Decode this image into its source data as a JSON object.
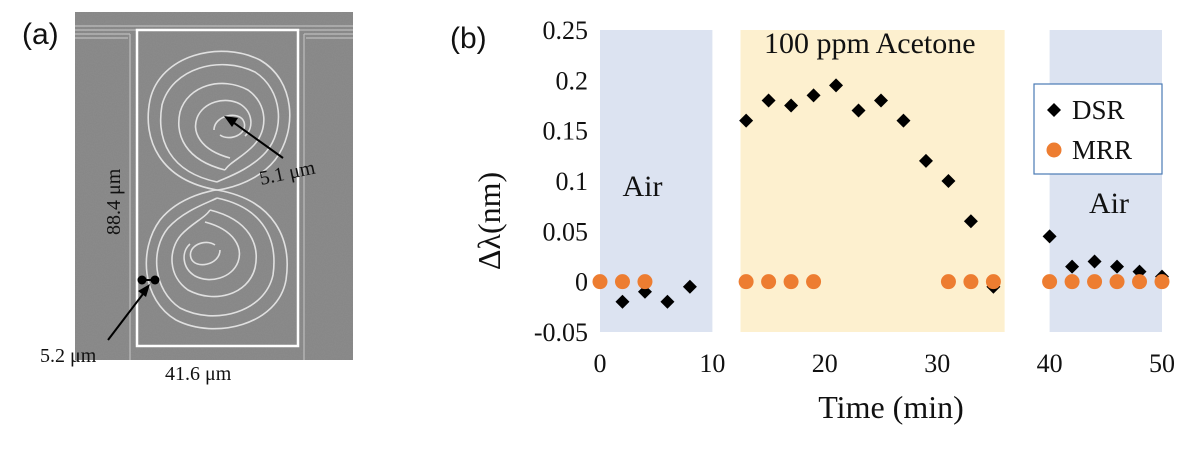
{
  "panels": {
    "a_label": "(a)",
    "b_label": "(b)"
  },
  "sem": {
    "height_label": "88.4 μm",
    "width_label": "41.6 μm",
    "inner_gap_label": "5.1 μm",
    "coupler_gap_label": "5.2 μm"
  },
  "chart_data": {
    "type": "scatter",
    "xlabel": "Time (min)",
    "ylabel": "Δλ(nm)",
    "xlim": [
      0,
      50
    ],
    "ylim": [
      -0.05,
      0.25
    ],
    "xticks": [
      0,
      10,
      20,
      30,
      40,
      50
    ],
    "yticks": [
      -0.05,
      0,
      0.05,
      0.1,
      0.15,
      0.2,
      0.25
    ],
    "ytick_labels": [
      "-0.05",
      "0",
      "0.05",
      "0.1",
      "0.15",
      "0.2",
      "0.25"
    ],
    "grid": false,
    "legend_position": "top-right",
    "regions": [
      {
        "label": "Air",
        "x": [
          0,
          10
        ],
        "color": "#dce3f1"
      },
      {
        "label": "100 ppm Acetone",
        "x": [
          12.5,
          36
        ],
        "color": "#fdf0cf"
      },
      {
        "label": "Air",
        "x": [
          40,
          50
        ],
        "color": "#dce3f1"
      }
    ],
    "series": [
      {
        "name": "DSR",
        "marker": "diamond",
        "color": "#000000",
        "x": [
          2,
          4,
          6,
          8,
          13,
          15,
          17,
          19,
          21,
          23,
          25,
          27,
          29,
          31,
          33,
          35,
          40,
          42,
          44,
          46,
          48,
          50
        ],
        "y": [
          -0.02,
          -0.01,
          -0.02,
          -0.005,
          0.16,
          0.18,
          0.175,
          0.185,
          0.195,
          0.17,
          0.18,
          0.16,
          0.12,
          0.1,
          0.06,
          -0.005,
          0.045,
          0.015,
          0.02,
          0.015,
          0.01,
          0.005
        ]
      },
      {
        "name": "MRR",
        "marker": "circle",
        "color": "#ed7d31",
        "x": [
          0,
          2,
          4,
          13,
          15,
          17,
          19,
          31,
          33,
          35,
          40,
          42,
          44,
          46,
          48,
          50
        ],
        "y": [
          0,
          0,
          0,
          0,
          0,
          0,
          0,
          0,
          0,
          0,
          0,
          0,
          0,
          0,
          0,
          0
        ]
      }
    ]
  }
}
